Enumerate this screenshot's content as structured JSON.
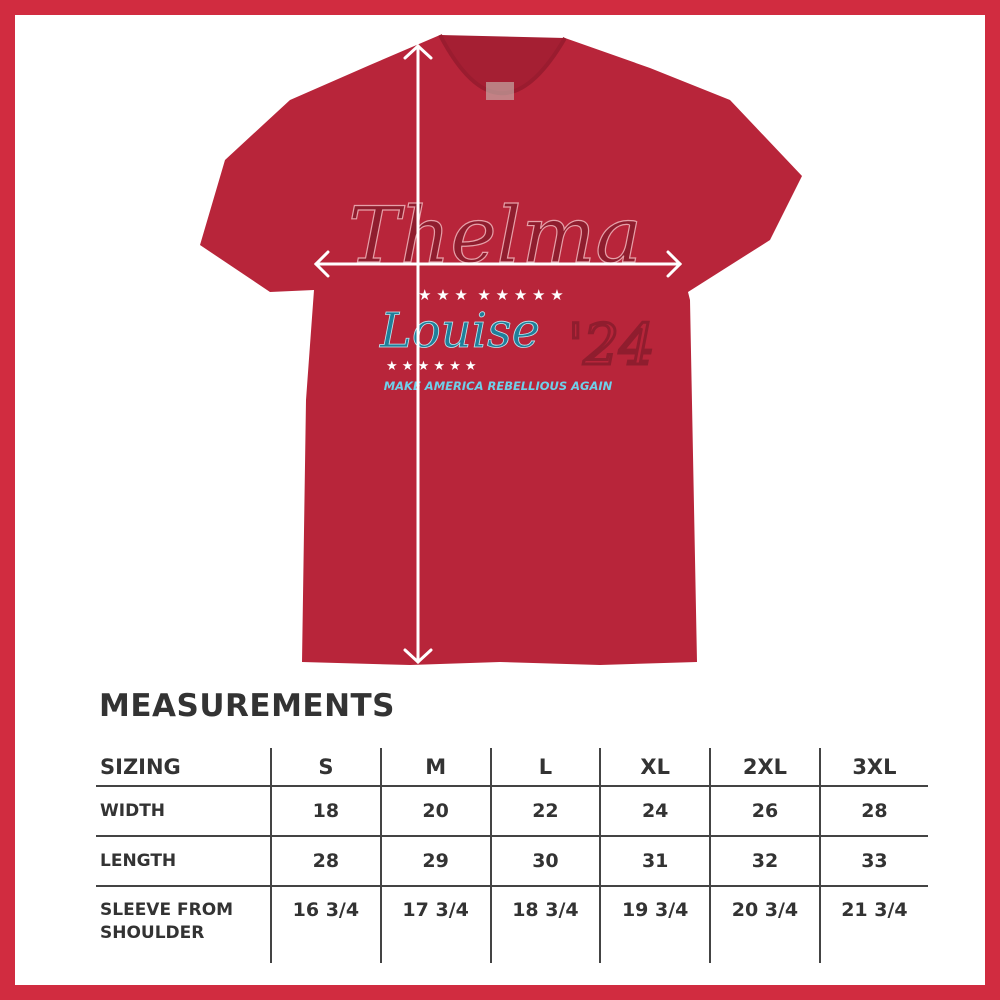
{
  "colors": {
    "frame": "#d12c40",
    "shirt": "#b8253a",
    "text": "#333333",
    "louise": "#1f7f9a"
  },
  "design": {
    "line1": "Thelma",
    "line2": "Louise",
    "year": "'24",
    "slogan": "MAKE AMERICA REBELLIOUS AGAIN"
  },
  "measurements": {
    "title": "MEASUREMENTS",
    "header": {
      "label": "SIZING",
      "sizes": [
        "S",
        "M",
        "L",
        "XL",
        "2XL",
        "3XL"
      ]
    },
    "rows": [
      {
        "label": "WIDTH",
        "values": [
          "18",
          "20",
          "22",
          "24",
          "26",
          "28"
        ]
      },
      {
        "label": "LENGTH",
        "values": [
          "28",
          "29",
          "30",
          "31",
          "32",
          "33"
        ]
      },
      {
        "label_line1": "SLEEVE FROM",
        "label_line2": "SHOULDER",
        "values": [
          "16 3/4",
          "17 3/4",
          "18 3/4",
          "19 3/4",
          "20 3/4",
          "21 3/4"
        ]
      }
    ]
  }
}
